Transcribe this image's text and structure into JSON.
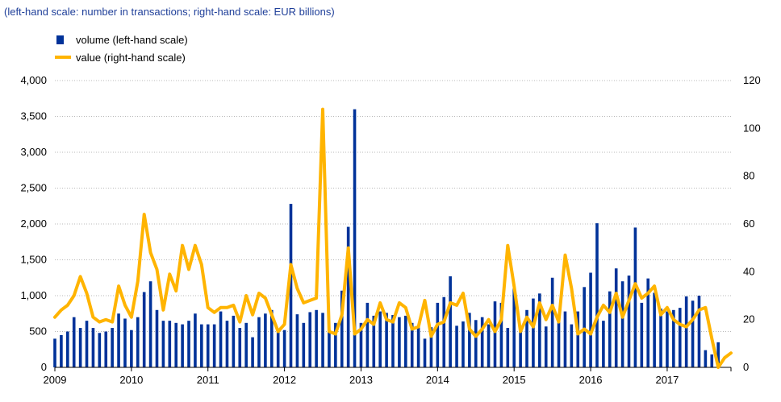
{
  "subtitle": "(left-hand scale: number in transactions; right-hand scale: EUR billions)",
  "colors": {
    "volume": "#003299",
    "value": "#ffb400",
    "subtitle": "#1f3f99",
    "axis": "#000000"
  },
  "chart_data": {
    "type": "bar+line",
    "title": "",
    "legend": [
      {
        "name": "volume (left-hand scale)",
        "kind": "bar"
      },
      {
        "name": "value (right-hand scale)",
        "kind": "line"
      }
    ],
    "legend_placement": "top-left",
    "x_ticks": [
      "2009",
      "2010",
      "2011",
      "2012",
      "2013",
      "2014",
      "2015",
      "2016",
      "2017"
    ],
    "x_range": [
      "2009-01",
      "2017-12"
    ],
    "left_axis": {
      "ylim": [
        0,
        4000
      ],
      "ticks": [
        "0",
        "500",
        "1,000",
        "1,500",
        "2,000",
        "2,500",
        "3,000",
        "3,500",
        "4,000"
      ]
    },
    "right_axis": {
      "ylim": [
        0,
        120
      ],
      "ticks": [
        "0",
        "20",
        "40",
        "60",
        "80",
        "100",
        "120"
      ]
    },
    "grid": "horizontal",
    "series": [
      {
        "name": "volume (left-hand scale)",
        "axis": "left",
        "type": "bar",
        "start": "2009-01",
        "frequency": "monthly",
        "values": [
          400,
          450,
          500,
          700,
          550,
          650,
          550,
          480,
          500,
          550,
          750,
          680,
          520,
          700,
          1050,
          1200,
          800,
          650,
          650,
          620,
          600,
          650,
          750,
          600,
          600,
          600,
          780,
          650,
          720,
          550,
          620,
          420,
          700,
          750,
          800,
          500,
          520,
          2280,
          740,
          620,
          770,
          800,
          760,
          520,
          620,
          1070,
          1960,
          3600,
          620,
          900,
          720,
          780,
          760,
          730,
          700,
          720,
          620,
          580,
          400,
          560,
          900,
          980,
          1270,
          580,
          640,
          760,
          660,
          700,
          600,
          920,
          900,
          550,
          1100,
          500,
          800,
          960,
          1030,
          570,
          1250,
          710,
          780,
          600,
          780,
          1120,
          1320,
          2010,
          650,
          1060,
          1380,
          1200,
          1280,
          1950,
          900,
          1240,
          1040,
          820,
          780,
          800,
          830,
          990,
          930,
          1000,
          240,
          180,
          350
        ]
      },
      {
        "name": "value (right-hand scale)",
        "axis": "right",
        "type": "line",
        "start": "2009-01",
        "frequency": "monthly",
        "values": [
          21,
          24,
          26,
          30,
          38,
          31,
          21,
          19,
          20,
          19,
          34,
          26,
          21,
          36,
          64,
          48,
          41,
          24,
          39,
          32,
          51,
          41,
          51,
          43,
          25,
          23,
          25,
          25,
          26,
          19,
          30,
          22,
          31,
          29,
          22,
          15,
          18,
          43,
          33,
          27,
          28,
          29,
          108,
          15,
          14,
          22,
          50,
          14,
          16,
          20,
          18,
          27,
          20,
          19,
          27,
          25,
          16,
          17,
          28,
          13,
          18,
          19,
          27,
          26,
          31,
          16,
          13,
          16,
          20,
          15,
          20,
          51,
          34,
          15,
          21,
          17,
          27,
          20,
          26,
          19,
          47,
          33,
          14,
          16,
          14,
          21,
          26,
          23,
          31,
          21,
          28,
          35,
          29,
          31,
          34,
          22,
          25,
          20,
          18,
          17,
          20,
          24,
          25,
          12,
          0,
          4,
          6
        ]
      }
    ]
  }
}
